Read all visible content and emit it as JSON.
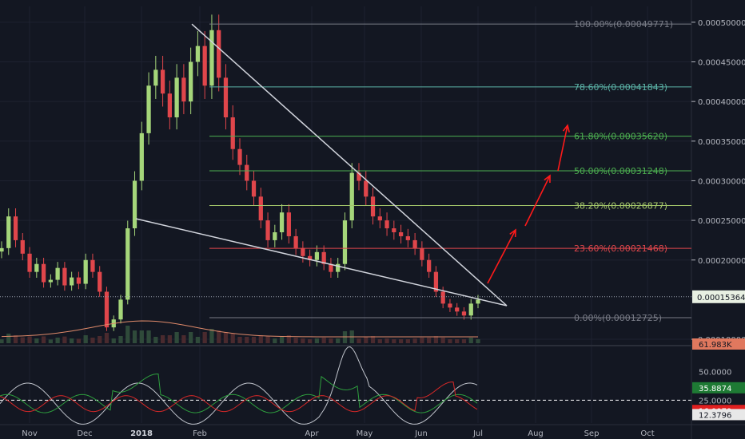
{
  "chart_data": [
    {
      "type": "candlestick",
      "title": "",
      "x_axis_labels": [
        "Nov",
        "Dec",
        "2018",
        "Feb",
        "Apr",
        "May",
        "Jun",
        "Jul",
        "Aug",
        "Sep",
        "Oct"
      ],
      "y_tick_labels": [
        "0.00050000",
        "0.00045000",
        "0.00040000",
        "0.00035000",
        "0.00030000",
        "0.00025000",
        "0.00020000",
        "0.00010000"
      ],
      "ylim": [
        9.3e-05,
        0.00052
      ],
      "current_price_label": "0.00015364",
      "fibonacci_levels": [
        {
          "label": "100.00%(0.00049771)",
          "price": 0.00049771,
          "color": "#787b86"
        },
        {
          "label": "78.60%(0.00041843)",
          "price": 0.00041843,
          "color": "#5bb3a7"
        },
        {
          "label": "61.80%(0.00035620)",
          "price": 0.0003562,
          "color": "#4caf50"
        },
        {
          "label": "50.00%(0.00031248)",
          "price": 0.00031248,
          "color": "#4caf50"
        },
        {
          "label": "38.20%(0.00026877)",
          "price": 0.00026877,
          "color": "#a5c86b"
        },
        {
          "label": "23.60%(0.00021468)",
          "price": 0.00021468,
          "color": "#e0464b"
        },
        {
          "label": "0.00%(0.00012725)",
          "price": 0.00012725,
          "color": "#787b86"
        }
      ],
      "candles_close": [
        0.000215,
        0.000255,
        0.000225,
        0.000208,
        0.000185,
        0.000195,
        0.000172,
        0.000175,
        0.00019,
        0.000168,
        0.000178,
        0.00017,
        0.0002,
        0.000185,
        0.00016,
        0.000115,
        0.000125,
        0.00015,
        0.00024,
        0.0003,
        0.00036,
        0.00042,
        0.00044,
        0.00041,
        0.00038,
        0.00043,
        0.0004,
        0.00045,
        0.00047,
        0.00042,
        0.00049,
        0.00043,
        0.00038,
        0.00034,
        0.00032,
        0.0003,
        0.00028,
        0.00025,
        0.000225,
        0.000235,
        0.00026,
        0.00023,
        0.000215,
        0.000205,
        0.0002,
        0.00021,
        0.000195,
        0.000185,
        0.000195,
        0.00025,
        0.00031,
        0.0003,
        0.00028,
        0.000255,
        0.00025,
        0.00024,
        0.000235,
        0.00023,
        0.000225,
        0.000215,
        0.0002,
        0.000185,
        0.00016,
        0.000145,
        0.00014,
        0.000135,
        0.00013,
        0.000145,
        0.00015
      ],
      "volume_label": "61.983K",
      "indicator_labels": [
        "50.0000",
        "35.8874",
        "25.0000",
        "16.0079",
        "12.3796"
      ],
      "annotations": [
        "falling wedge trendlines",
        "red arrows projecting upward"
      ],
      "grid": true
    }
  ],
  "colors": {
    "background": "#131722",
    "up": "#a5d67a",
    "down": "#e0464b",
    "grid": "#1e2230",
    "text": "#b2b5be",
    "trendline": "#d1d4dc",
    "arrow": "#ff1a1a"
  }
}
